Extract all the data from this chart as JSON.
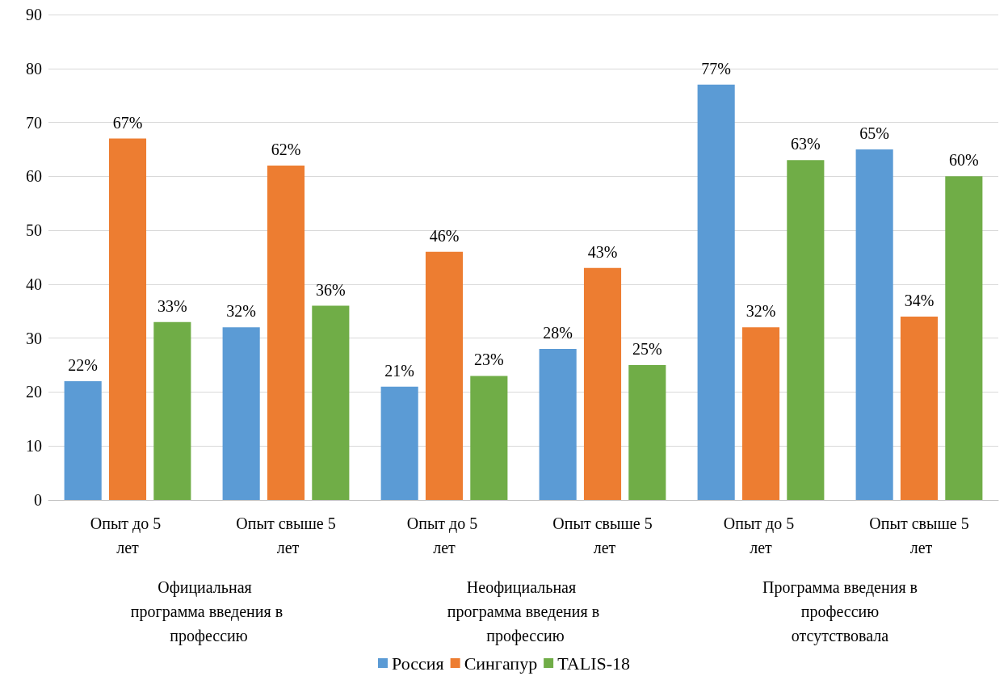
{
  "chart_data": {
    "type": "bar",
    "categories": [
      "Опыт до 5 лет",
      "Опыт свыше 5 лет",
      "Опыт до 5 лет",
      "Опыт свыше 5 лет",
      "Опыт до 5 лет",
      "Опыт свыше 5 лет"
    ],
    "series": [
      {
        "name": "Россия",
        "color": "#5b9bd5",
        "values": [
          22,
          32,
          21,
          28,
          77,
          65
        ],
        "value_labels": [
          "22%",
          "32%",
          "21%",
          "28%",
          "77%",
          "65%"
        ]
      },
      {
        "name": "Сингапур",
        "color": "#ed7d31",
        "values": [
          67,
          62,
          46,
          43,
          32,
          34
        ],
        "value_labels": [
          "67%",
          "62%",
          "46%",
          "43%",
          "32%",
          "34%"
        ]
      },
      {
        "name": "TALIS-18",
        "color": "#70ad47",
        "values": [
          33,
          36,
          23,
          25,
          63,
          60
        ],
        "value_labels": [
          "33%",
          "36%",
          "23%",
          "25%",
          "63%",
          "60%"
        ]
      }
    ],
    "annotations": [
      "Официальная программа введения в профессию",
      "Неофициальная программа введения в профессию",
      "Программа введения в профессию отсутствовала"
    ],
    "ylim": [
      0,
      90
    ],
    "yticks": [
      0,
      10,
      20,
      30,
      40,
      50,
      60,
      70,
      80,
      90
    ],
    "grid": "y",
    "legend": "bottom"
  }
}
